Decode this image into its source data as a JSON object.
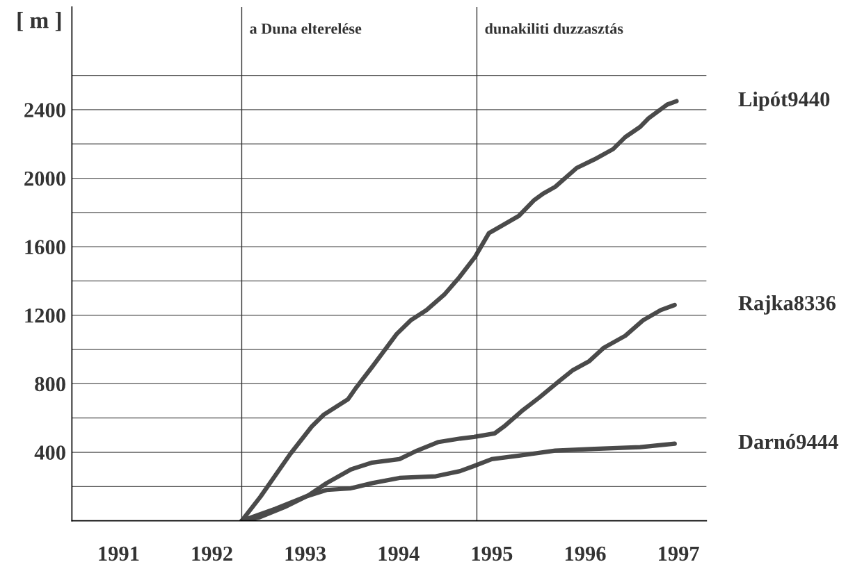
{
  "chart_data": {
    "type": "line",
    "ylabel": "[ m ]",
    "xlim": [
      1991,
      1997.8
    ],
    "ylim": [
      0,
      3000
    ],
    "xticks": [
      {
        "value": 1991.5,
        "label": "1991"
      },
      {
        "value": 1992.5,
        "label": "1992"
      },
      {
        "value": 1993.5,
        "label": "1993"
      },
      {
        "value": 1994.5,
        "label": "1994"
      },
      {
        "value": 1995.5,
        "label": "1995"
      },
      {
        "value": 1996.5,
        "label": "1996"
      },
      {
        "value": 1997.5,
        "label": "1997"
      }
    ],
    "yticks": [
      {
        "value": 200,
        "label": null
      },
      400,
      {
        "value": 600,
        "label": null
      },
      800,
      {
        "value": 1000,
        "label": null
      },
      1200,
      {
        "value": 1400,
        "label": null
      },
      1600,
      {
        "value": 1800,
        "label": null
      },
      2000,
      {
        "value": 2200,
        "label": null
      },
      2400,
      {
        "value": 2600,
        "label": null
      }
    ],
    "grid": "y",
    "legend": false,
    "marker": "none",
    "line_style": "solid",
    "ref_lines": [
      {
        "axis": "x",
        "value": 1992.82,
        "label": "a Duna elterelése",
        "color": "#333333"
      },
      {
        "axis": "x",
        "value": 1995.34,
        "label": "dunakiliti duzzasztás",
        "color": "#333333"
      }
    ],
    "series": [
      {
        "name": "Lipót9440",
        "color": "#4a4a4a",
        "x": [
          1992.82,
          1993.02,
          1993.34,
          1993.57,
          1993.7,
          1993.96,
          1994.05,
          1994.22,
          1994.48,
          1994.63,
          1994.8,
          1994.99,
          1995.15,
          1995.32,
          1995.47,
          1995.6,
          1995.79,
          1995.95,
          1996.05,
          1996.18,
          1996.41,
          1996.6,
          1996.8,
          1996.93,
          1997.09,
          1997.18,
          1997.38,
          1997.48
        ],
        "values": [
          0,
          140,
          390,
          550,
          620,
          710,
          780,
          900,
          1090,
          1170,
          1230,
          1320,
          1420,
          1540,
          1680,
          1720,
          1780,
          1870,
          1910,
          1950,
          2060,
          2110,
          2170,
          2240,
          2300,
          2350,
          2430,
          2450
        ]
      },
      {
        "name": "Rajka8336",
        "color": "#4a4a4a",
        "x": [
          1992.82,
          1993.01,
          1993.28,
          1993.54,
          1993.73,
          1993.99,
          1994.22,
          1994.51,
          1994.7,
          1994.93,
          1995.16,
          1995.31,
          1995.53,
          1995.63,
          1995.82,
          1996.01,
          1996.21,
          1996.37,
          1996.54,
          1996.7,
          1996.93,
          1997.12,
          1997.31,
          1997.46
        ],
        "values": [
          0,
          20,
          80,
          150,
          220,
          300,
          340,
          360,
          410,
          460,
          480,
          490,
          510,
          550,
          640,
          720,
          810,
          880,
          930,
          1010,
          1080,
          1170,
          1230,
          1260
        ]
      },
      {
        "name": "Darnó9444",
        "color": "#4a4a4a",
        "x": [
          1992.82,
          1993.18,
          1993.5,
          1993.73,
          1993.99,
          1994.22,
          1994.51,
          1994.9,
          1995.16,
          1995.31,
          1995.5,
          1995.79,
          1996.18,
          1996.6,
          1997.09,
          1997.46
        ],
        "values": [
          0,
          70,
          140,
          180,
          190,
          220,
          250,
          260,
          290,
          320,
          360,
          380,
          410,
          420,
          430,
          450
        ]
      }
    ]
  }
}
